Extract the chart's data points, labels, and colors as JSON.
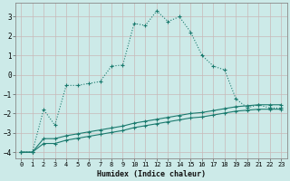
{
  "xlabel": "Humidex (Indice chaleur)",
  "bg_color": "#cceae8",
  "line_color": "#1a7a6e",
  "xlim": [
    -0.5,
    23.5
  ],
  "ylim": [
    -4.3,
    3.7
  ],
  "xticks": [
    0,
    1,
    2,
    3,
    4,
    5,
    6,
    7,
    8,
    9,
    10,
    11,
    12,
    13,
    14,
    15,
    16,
    17,
    18,
    19,
    20,
    21,
    22,
    23
  ],
  "yticks": [
    -4,
    -3,
    -2,
    -1,
    0,
    1,
    2,
    3
  ],
  "line1_x": [
    0,
    1,
    2,
    3,
    4,
    5,
    6,
    7,
    8,
    9,
    10,
    11,
    12,
    13,
    14,
    15,
    16,
    17,
    18,
    19,
    20,
    21,
    22,
    23
  ],
  "line1_y": [
    -4.0,
    -4.0,
    -1.8,
    -2.6,
    -0.55,
    -0.55,
    -0.45,
    -0.35,
    0.45,
    0.5,
    2.65,
    2.55,
    3.3,
    2.75,
    3.0,
    2.2,
    1.0,
    0.45,
    0.25,
    -1.25,
    -1.7,
    -1.55,
    -1.72,
    -1.72
  ],
  "line2_x": [
    0,
    1,
    2,
    3,
    4,
    5,
    6,
    7,
    8,
    9,
    10,
    11,
    12,
    13,
    14,
    15,
    16,
    17,
    18,
    19,
    20,
    21,
    22,
    23
  ],
  "line2_y": [
    -4.0,
    -4.0,
    -3.3,
    -3.3,
    -3.15,
    -3.05,
    -2.95,
    -2.85,
    -2.75,
    -2.65,
    -2.5,
    -2.4,
    -2.3,
    -2.2,
    -2.1,
    -2.0,
    -1.95,
    -1.85,
    -1.75,
    -1.65,
    -1.6,
    -1.55,
    -1.55,
    -1.55
  ],
  "line3_x": [
    0,
    1,
    2,
    3,
    4,
    5,
    6,
    7,
    8,
    9,
    10,
    11,
    12,
    13,
    14,
    15,
    16,
    17,
    18,
    19,
    20,
    21,
    22,
    23
  ],
  "line3_y": [
    -4.0,
    -4.0,
    -3.55,
    -3.55,
    -3.38,
    -3.28,
    -3.18,
    -3.08,
    -2.98,
    -2.88,
    -2.73,
    -2.63,
    -2.53,
    -2.43,
    -2.33,
    -2.23,
    -2.18,
    -2.08,
    -1.98,
    -1.88,
    -1.83,
    -1.78,
    -1.78,
    -1.78
  ]
}
